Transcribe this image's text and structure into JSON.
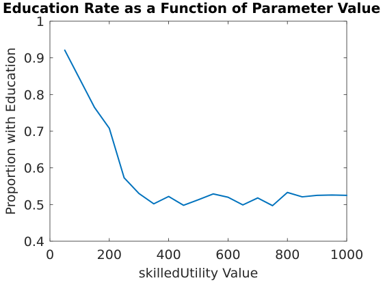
{
  "chart_data": {
    "type": "line",
    "title": "Education Rate as a Function of Parameter Value",
    "xlabel": "skilledUtility Value",
    "ylabel": "Proportion with Education",
    "xlim": [
      0,
      1000
    ],
    "ylim": [
      0.4,
      1
    ],
    "xticks": [
      0,
      200,
      400,
      600,
      800,
      1000
    ],
    "xtick_labels": [
      "0",
      "200",
      "400",
      "600",
      "800",
      "1000"
    ],
    "yticks": [
      0.4,
      0.5,
      0.6,
      0.7,
      0.8,
      0.9,
      1
    ],
    "ytick_labels": [
      "0.4",
      "0.5",
      "0.6",
      "0.7",
      "0.8",
      "0.9",
      "1"
    ],
    "grid": false,
    "series": [
      {
        "color": "#0072BD",
        "x": [
          50,
          100,
          150,
          200,
          250,
          300,
          350,
          400,
          450,
          500,
          550,
          600,
          650,
          700,
          750,
          800,
          850,
          900,
          950,
          1000
        ],
        "y": [
          0.921,
          0.843,
          0.765,
          0.708,
          0.573,
          0.53,
          0.502,
          0.522,
          0.498,
          0.513,
          0.529,
          0.52,
          0.499,
          0.518,
          0.497,
          0.533,
          0.521,
          0.525,
          0.526,
          0.525
        ]
      }
    ]
  }
}
